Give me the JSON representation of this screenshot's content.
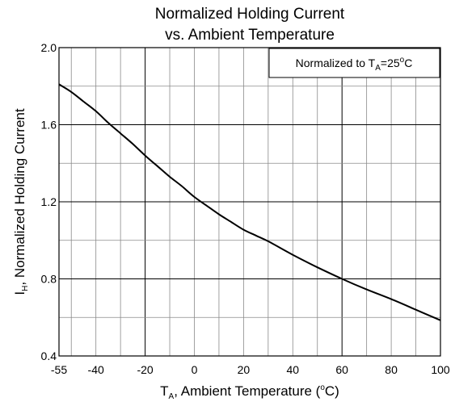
{
  "chart_data": {
    "type": "line",
    "title_line1": "Normalized Holding Current",
    "title_line2": "vs. Ambient Temperature",
    "xlabel_parts": {
      "main": "T",
      "sub": "A",
      "rest": ", Ambient Temperature (",
      "deg": "o",
      "unit": "C)"
    },
    "ylabel_parts": {
      "main": "I",
      "sub": "H",
      "rest": ", Normalized Holding Current"
    },
    "legend_parts": {
      "prefix": "Normalized to T",
      "sub": "A",
      "eq": "=25",
      "deg": "o",
      "unit": "C"
    },
    "xlim": [
      -55,
      100
    ],
    "ylim": [
      0.4,
      2.0
    ],
    "x_ticks": [
      -55,
      -40,
      -20,
      0,
      20,
      40,
      60,
      80,
      100
    ],
    "x_tick_labels": [
      "-55",
      "-40",
      "-20",
      "0",
      "20",
      "40",
      "60",
      "80",
      "100"
    ],
    "y_ticks": [
      0.4,
      0.8,
      1.2,
      1.6,
      2.0
    ],
    "y_tick_labels": [
      "0.4",
      "0.8",
      "1.2",
      "1.6",
      "2.0"
    ],
    "x_minor_grid": [
      -50,
      -40,
      -30,
      -20,
      -10,
      0,
      10,
      20,
      30,
      40,
      50,
      60,
      70,
      80,
      90
    ],
    "x_major_grid": [
      -20,
      60
    ],
    "y_minor_grid": [
      0.6,
      1.0,
      1.4,
      1.8
    ],
    "y_major_grid": [
      0.8,
      1.2,
      1.6
    ],
    "grid": true,
    "legend_position": "top-right",
    "series": [
      {
        "color": "#000000",
        "x": [
          -55,
          -50,
          -45,
          -40,
          -35,
          -30,
          -25,
          -20,
          -15,
          -10,
          -5,
          0,
          5,
          10,
          15,
          20,
          25,
          30,
          40,
          50,
          60,
          70,
          80,
          90,
          100
        ],
        "y": [
          1.81,
          1.77,
          1.72,
          1.67,
          1.61,
          1.555,
          1.5,
          1.44,
          1.385,
          1.33,
          1.28,
          1.225,
          1.18,
          1.135,
          1.095,
          1.055,
          1.025,
          0.995,
          0.925,
          0.86,
          0.8,
          0.745,
          0.695,
          0.64,
          0.585
        ]
      }
    ]
  }
}
